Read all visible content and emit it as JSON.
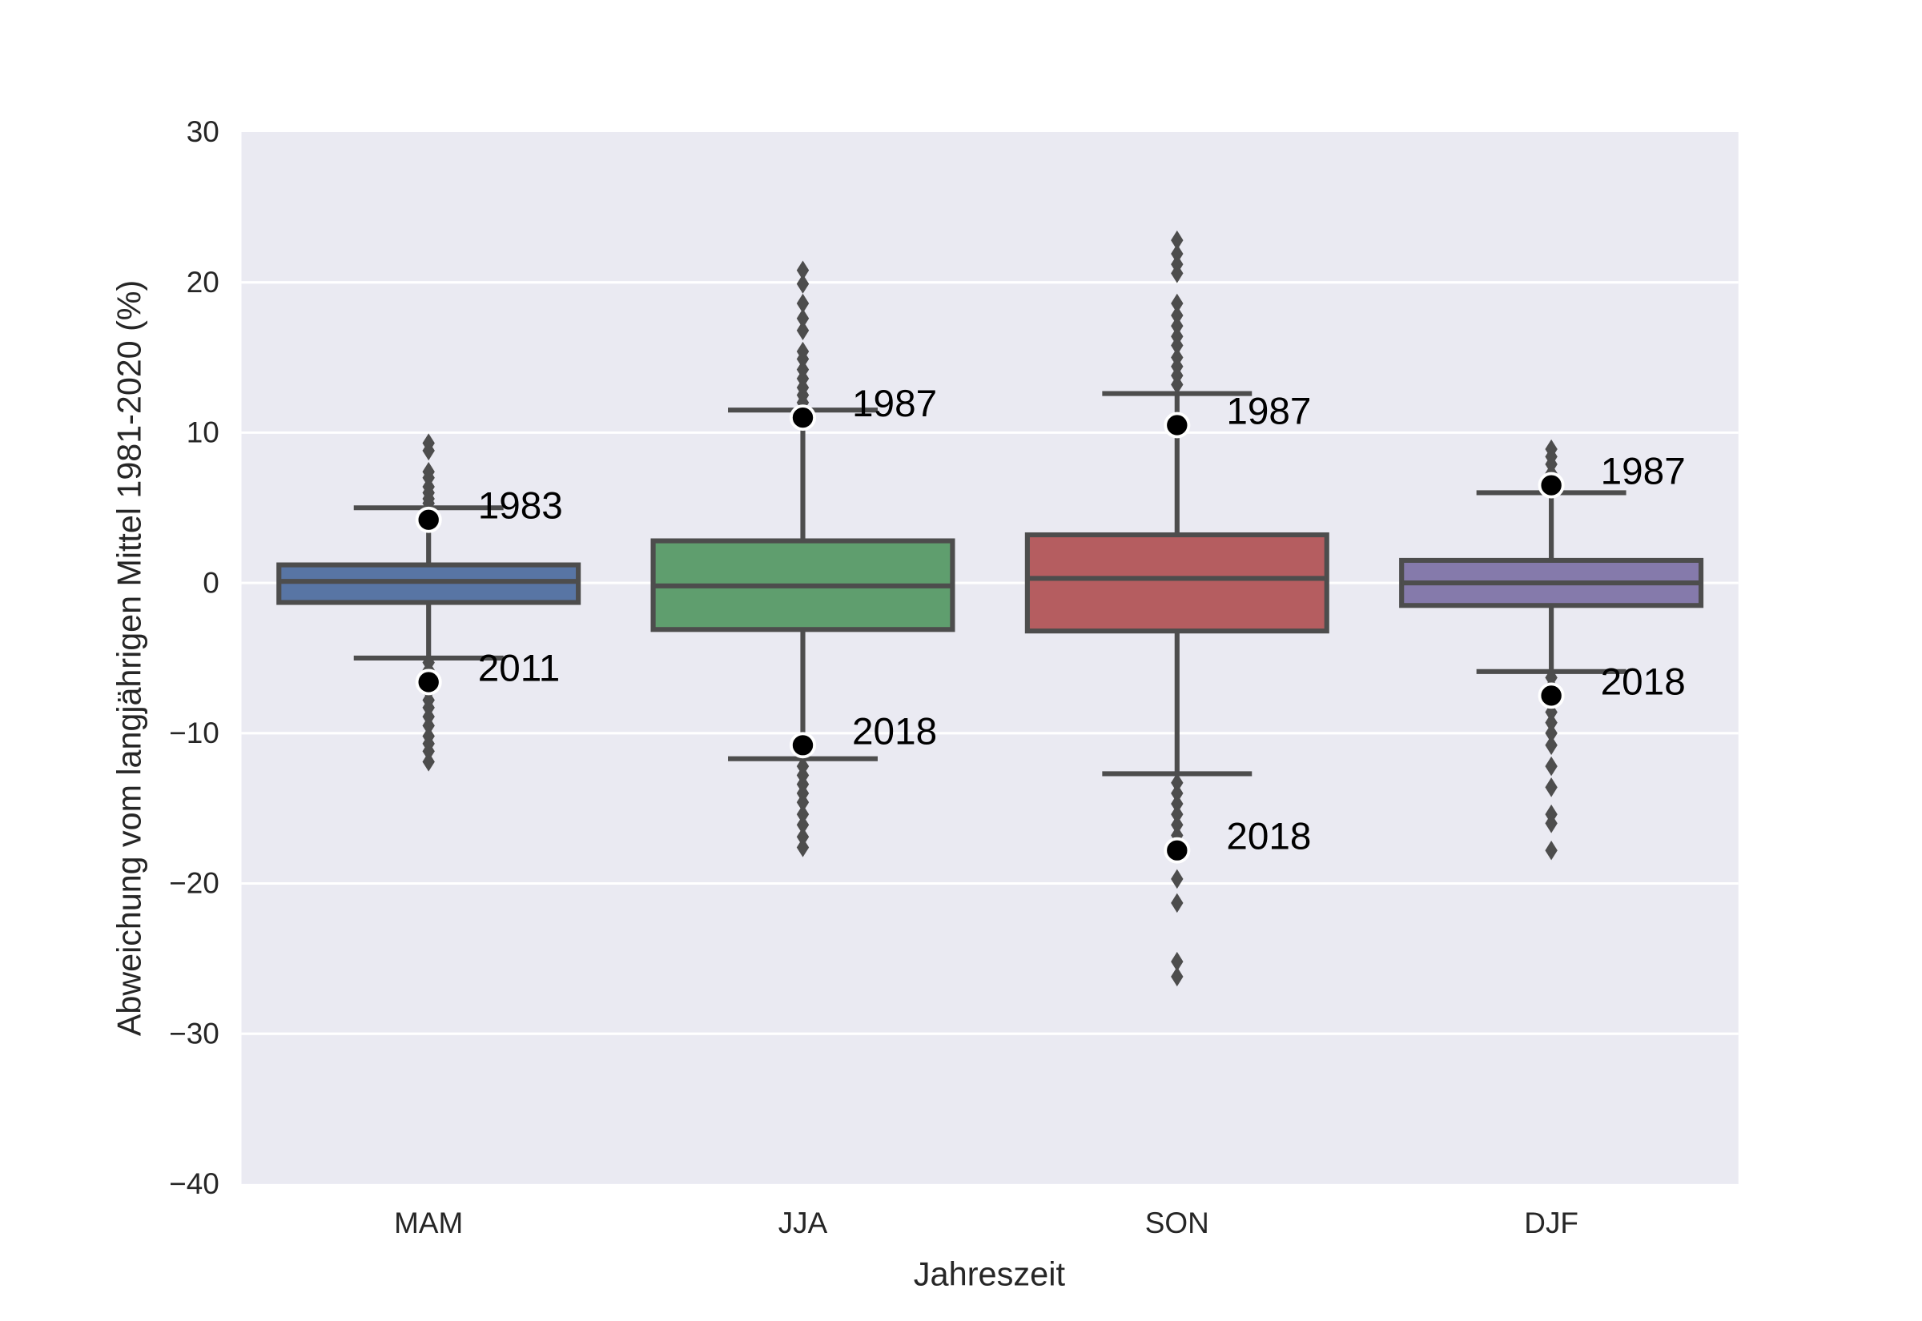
{
  "chart_data": {
    "type": "box",
    "title": "",
    "xlabel": "Jahreszeit",
    "ylabel": "Abweichung vom langjährigen Mittel 1981-2020 (%)",
    "ylim": [
      -40,
      30
    ],
    "yticks": [
      30,
      20,
      10,
      0,
      -10,
      -20,
      -30,
      -40
    ],
    "ytick_labels": [
      "30",
      "20",
      "10",
      "0",
      "−10",
      "−20",
      "−30",
      "−40"
    ],
    "grid": true,
    "background": "#EAEAF2",
    "line_color": "#4D4D4D",
    "categories": [
      "MAM",
      "JJA",
      "SON",
      "DJF"
    ],
    "boxes": [
      {
        "category": "MAM",
        "color": "#5875A4",
        "q1": -1.3,
        "median": 0.1,
        "q3": 1.2,
        "whisker_low": -5.0,
        "whisker_high": 5.0,
        "outliers": [
          9.3,
          8.8,
          7.4,
          7.0,
          6.4,
          6.0,
          5.6,
          5.3,
          -5.3,
          -5.8,
          -6.3,
          -7.2,
          -7.8,
          -8.3,
          -8.9,
          -9.5,
          -10.2,
          -10.7,
          -11.2,
          -11.9
        ],
        "highlights": [
          {
            "label": "1983",
            "value": 4.2
          },
          {
            "label": "2011",
            "value": -6.6
          }
        ]
      },
      {
        "category": "JJA",
        "color": "#5F9E6E",
        "q1": -3.1,
        "median": -0.2,
        "q3": 2.8,
        "whisker_low": -11.7,
        "whisker_high": 11.5,
        "outliers": [
          20.8,
          19.9,
          18.6,
          17.6,
          16.8,
          15.4,
          14.9,
          14.2,
          13.6,
          13.0,
          12.5,
          12.0,
          -12.2,
          -12.8,
          -13.4,
          -14.0,
          -14.6,
          -15.4,
          -16.1,
          -16.9,
          -17.6
        ],
        "highlights": [
          {
            "label": "1987",
            "value": 11.0
          },
          {
            "label": "2018",
            "value": -10.8
          }
        ]
      },
      {
        "category": "SON",
        "color": "#B55D60",
        "q1": -3.2,
        "median": 0.3,
        "q3": 3.2,
        "whisker_low": -12.7,
        "whisker_high": 12.6,
        "outliers": [
          22.8,
          21.9,
          21.2,
          20.6,
          18.6,
          17.8,
          17.1,
          16.4,
          15.8,
          15.0,
          14.4,
          13.8,
          13.2,
          -13.3,
          -14.0,
          -14.7,
          -15.4,
          -16.1,
          -16.8,
          -19.7,
          -21.3,
          -25.2,
          -26.2
        ],
        "highlights": [
          {
            "label": "1987",
            "value": 10.5
          },
          {
            "label": "2018",
            "value": -17.8
          }
        ]
      },
      {
        "category": "DJF",
        "color": "#857AAB",
        "q1": -1.5,
        "median": 0.0,
        "q3": 1.5,
        "whisker_low": -5.9,
        "whisker_high": 6.0,
        "outliers": [
          8.9,
          8.4,
          7.9,
          7.3,
          6.8,
          -6.3,
          -6.9,
          -7.8,
          -8.6,
          -9.3,
          -10.0,
          -10.8,
          -12.2,
          -13.6,
          -15.4,
          -16.0,
          -17.8
        ],
        "highlights": [
          {
            "label": "1987",
            "value": 6.5
          },
          {
            "label": "2018",
            "value": -7.5
          }
        ]
      }
    ]
  }
}
